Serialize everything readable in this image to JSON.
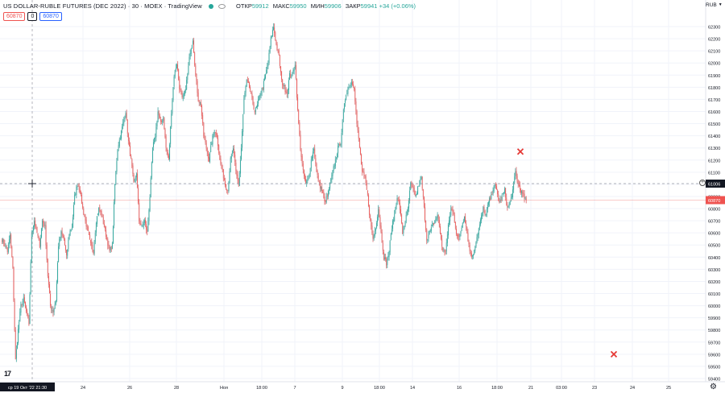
{
  "header": {
    "title": "US DOLLAR-RUBLE FUTURES (DEC 2022) · 30 · MOEX · TradingView",
    "open_label": "ОТКР",
    "open_value": "59912",
    "high_label": "МАКС",
    "high_value": "59950",
    "low_label": "МИН",
    "low_value": "59906",
    "close_label": "ЗАКР",
    "close_value": "59941",
    "change": "+34 (+0.06%)"
  },
  "trade": {
    "sell_price": "60870",
    "spread": "0",
    "buy_price": "60870"
  },
  "currency": "RUB",
  "chart_data": {
    "type": "candlestick",
    "timeframe": "30",
    "ylim": [
      59400,
      63300
    ],
    "y_ticks": [
      59400,
      59500,
      59600,
      59700,
      59800,
      59900,
      60000,
      60100,
      60200,
      60300,
      60400,
      60500,
      60600,
      60700,
      60800,
      60900,
      61000,
      61100,
      61200,
      61300,
      61400,
      61500,
      61600,
      61700,
      61800,
      61900,
      62000,
      62100,
      62200,
      62300
    ],
    "x_labels": [
      "24",
      "26",
      "28",
      "Ноя",
      "18:00",
      "7",
      "9",
      "18:00",
      "14",
      "16",
      "18:00",
      "21",
      "03:00",
      "23",
      "24",
      "25"
    ],
    "crosshair_price": "61006",
    "crosshair_time": "ср 19 Окт '22  21:30",
    "last_price": "60870",
    "marker_prices": [
      61270,
      59600
    ],
    "path": [
      60550,
      60500,
      60450,
      60580,
      60300,
      59550,
      59800,
      60000,
      60050,
      59950,
      59850,
      60600,
      60700,
      60600,
      60500,
      60700,
      60650,
      60250,
      60000,
      59950,
      60050,
      60500,
      60600,
      60550,
      60400,
      60600,
      60650,
      60900,
      61000,
      60950,
      60800,
      60700,
      60600,
      60500,
      60450,
      60700,
      60800,
      60750,
      60650,
      60550,
      60450,
      60500,
      61000,
      61300,
      61400,
      61500,
      61600,
      61350,
      61200,
      61000,
      61100,
      60700,
      60650,
      60700,
      60600,
      60900,
      61300,
      61400,
      61600,
      61500,
      61550,
      61300,
      61200,
      61600,
      61900,
      62000,
      61800,
      61700,
      61750,
      61900,
      62100,
      62200,
      61900,
      61700,
      61650,
      61400,
      61300,
      61200,
      61350,
      61450,
      61400,
      61200,
      61100,
      61000,
      60950,
      61200,
      61300,
      61100,
      61000,
      61300,
      61700,
      61850,
      61800,
      61700,
      61600,
      61650,
      61750,
      61800,
      61900,
      62000,
      62200,
      62300,
      62150,
      62050,
      61850,
      61800,
      61750,
      61900,
      61900,
      62000,
      61600,
      61300,
      61100,
      61000,
      61050,
      61200,
      61300,
      61100,
      61000,
      60950,
      60850,
      60900,
      61000,
      61100,
      61200,
      61300,
      61350,
      61600,
      61750,
      61800,
      61850,
      61800,
      61500,
      61300,
      61100,
      61050,
      60900,
      60700,
      60550,
      60650,
      60800,
      60600,
      60400,
      60350,
      60450,
      60650,
      60750,
      60900,
      60800,
      60600,
      60700,
      60800,
      61000,
      60950,
      60900,
      61000,
      61050,
      60800,
      60550,
      60600,
      60650,
      60700,
      60750,
      60600,
      60450,
      60450,
      60650,
      60800,
      60750,
      60600,
      60550,
      60650,
      60750,
      60600,
      60450,
      60400,
      60500,
      60600,
      60700,
      60800,
      60750,
      60850,
      60900,
      61000,
      60950,
      60850,
      60900,
      60950,
      60800,
      60850,
      60950,
      61100,
      61000,
      60950,
      60900,
      60870
    ]
  }
}
